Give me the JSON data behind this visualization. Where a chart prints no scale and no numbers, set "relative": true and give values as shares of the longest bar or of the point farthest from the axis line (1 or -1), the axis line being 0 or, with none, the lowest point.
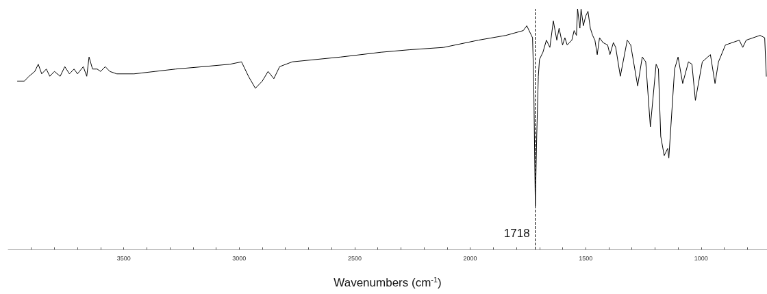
{
  "chart_data": {
    "type": "line",
    "relative": true,
    "xlabel": "Wavenumbers (cm$^{-1}$)",
    "xlim": [
      4000,
      715
    ],
    "xticks": [
      {
        "value": 3900,
        "label": null
      },
      {
        "value": 3800,
        "label": null
      },
      {
        "value": 3700,
        "label": null
      },
      {
        "value": 3600,
        "label": null
      },
      3500,
      {
        "value": 3400,
        "label": null
      },
      {
        "value": 3300,
        "label": null
      },
      {
        "value": 3200,
        "label": null
      },
      {
        "value": 3100,
        "label": null
      },
      3000,
      {
        "value": 2900,
        "label": null
      },
      {
        "value": 2800,
        "label": null
      },
      {
        "value": 2700,
        "label": null
      },
      {
        "value": 2600,
        "label": null
      },
      2500,
      {
        "value": 2400,
        "label": null
      },
      {
        "value": 2300,
        "label": null
      },
      {
        "value": 2200,
        "label": null
      },
      {
        "value": 2100,
        "label": null
      },
      2000,
      {
        "value": 1900,
        "label": null
      },
      {
        "value": 1800,
        "label": null
      },
      {
        "value": 1700,
        "label": null
      },
      {
        "value": 1600,
        "label": null
      },
      1500,
      {
        "value": 1400,
        "label": null
      },
      {
        "value": 1300,
        "label": null
      },
      {
        "value": 1200,
        "label": null
      },
      {
        "value": 1100,
        "label": null
      },
      1000,
      {
        "value": 900,
        "label": null
      },
      {
        "value": 800,
        "label": null
      }
    ],
    "tick_labels": "x",
    "grid": false,
    "marker": "none",
    "line_style": "solid",
    "ref_lines": [
      {
        "axis": "x",
        "value": 1718,
        "label": "1718",
        "line_style": "dashed",
        "color": "#000000"
      }
    ],
    "series": [
      {
        "color": "#000000",
        "x": [
          3960,
          3930,
          3910,
          3885,
          3870,
          3855,
          3835,
          3820,
          3800,
          3775,
          3755,
          3735,
          3715,
          3700,
          3675,
          3660,
          3650,
          3635,
          3615,
          3600,
          3580,
          3560,
          3530,
          3455,
          3365,
          3275,
          3155,
          3040,
          2990,
          2960,
          2930,
          2900,
          2875,
          2850,
          2825,
          2770,
          2560,
          2385,
          2265,
          2115,
          1965,
          1845,
          1770,
          1755,
          1740,
          1730,
          1725,
          1718,
          1712,
          1705,
          1700,
          1685,
          1670,
          1655,
          1640,
          1625,
          1615,
          1600,
          1590,
          1580,
          1560,
          1550,
          1540,
          1535,
          1525,
          1520,
          1510,
          1500,
          1490,
          1480,
          1470,
          1460,
          1450,
          1440,
          1425,
          1405,
          1395,
          1380,
          1370,
          1350,
          1320,
          1305,
          1275,
          1255,
          1240,
          1220,
          1195,
          1185,
          1175,
          1160,
          1145,
          1140,
          1115,
          1100,
          1080,
          1055,
          1040,
          1025,
          995,
          960,
          940,
          925,
          895,
          835,
          820,
          805,
          745,
          725,
          718
        ],
        "values": [
          0.7,
          0.7,
          0.72,
          0.74,
          0.77,
          0.73,
          0.75,
          0.72,
          0.74,
          0.72,
          0.76,
          0.73,
          0.75,
          0.73,
          0.76,
          0.72,
          0.8,
          0.75,
          0.75,
          0.74,
          0.76,
          0.74,
          0.73,
          0.73,
          0.74,
          0.75,
          0.76,
          0.77,
          0.78,
          0.72,
          0.67,
          0.7,
          0.74,
          0.71,
          0.76,
          0.78,
          0.8,
          0.82,
          0.83,
          0.84,
          0.87,
          0.89,
          0.91,
          0.93,
          0.9,
          0.88,
          0.7,
          0.18,
          0.47,
          0.72,
          0.79,
          0.82,
          0.87,
          0.84,
          0.95,
          0.87,
          0.92,
          0.85,
          0.88,
          0.85,
          0.87,
          0.91,
          0.89,
          1.0,
          0.92,
          1.0,
          0.93,
          0.97,
          0.99,
          0.92,
          0.89,
          0.87,
          0.81,
          0.88,
          0.86,
          0.85,
          0.81,
          0.86,
          0.84,
          0.72,
          0.87,
          0.85,
          0.68,
          0.8,
          0.78,
          0.51,
          0.77,
          0.75,
          0.47,
          0.39,
          0.42,
          0.38,
          0.75,
          0.8,
          0.69,
          0.78,
          0.77,
          0.62,
          0.78,
          0.81,
          0.69,
          0.78,
          0.85,
          0.87,
          0.84,
          0.87,
          0.89,
          0.88,
          0.72
        ]
      }
    ]
  }
}
